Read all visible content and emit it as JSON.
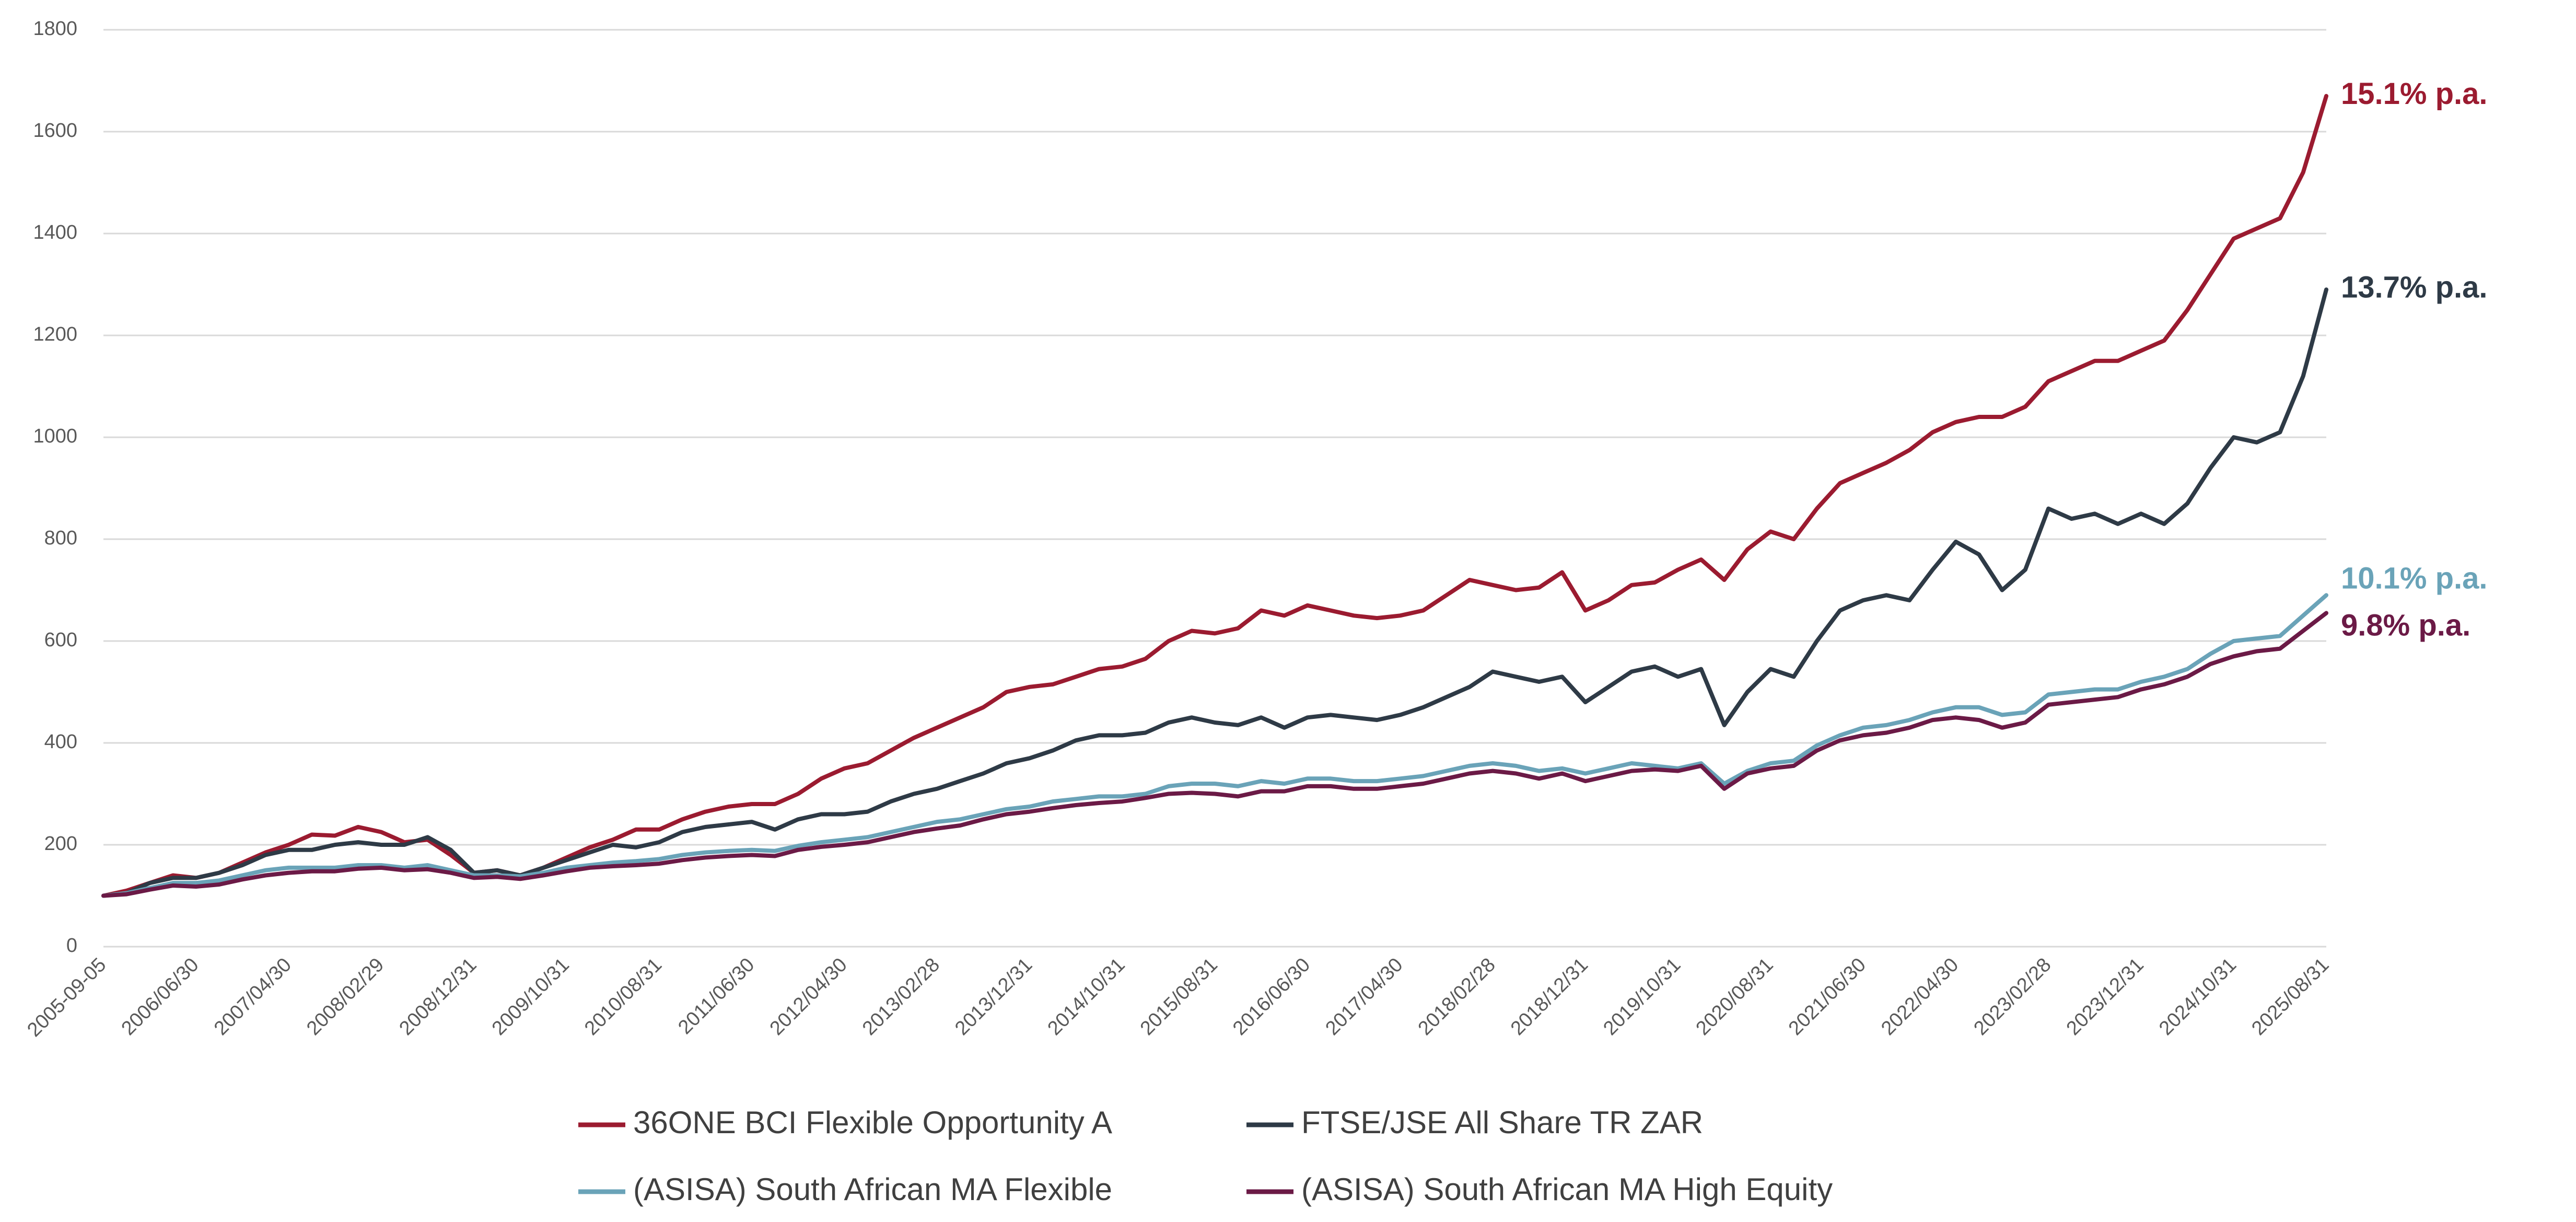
{
  "chart_data": {
    "type": "line",
    "categories": [
      "2005-09-05",
      null,
      null,
      null,
      "2006/06/30",
      null,
      null,
      null,
      "2007/04/30",
      null,
      null,
      null,
      "2008/02/29",
      null,
      null,
      null,
      "2008/12/31",
      null,
      null,
      null,
      "2009/10/31",
      null,
      null,
      null,
      "2010/08/31",
      null,
      null,
      null,
      "2011/06/30",
      null,
      null,
      null,
      "2012/04/30",
      null,
      null,
      null,
      "2013/02/28",
      null,
      null,
      null,
      "2013/12/31",
      null,
      null,
      null,
      "2014/10/31",
      null,
      null,
      null,
      "2015/08/31",
      null,
      null,
      null,
      "2016/06/30",
      null,
      null,
      null,
      "2017/04/30",
      null,
      null,
      null,
      "2018/02/28",
      null,
      null,
      null,
      "2018/12/31",
      null,
      null,
      null,
      "2019/10/31",
      null,
      null,
      null,
      "2020/08/31",
      null,
      null,
      null,
      "2021/06/30",
      null,
      null,
      null,
      "2022/04/30",
      null,
      null,
      null,
      "2023/02/28",
      null,
      null,
      null,
      "2023/12/31",
      null,
      null,
      null,
      "2024/10/31",
      null,
      null,
      null,
      "2025/08/31"
    ],
    "series": [
      {
        "name": "36ONE BCI Flexible Opportunity A",
        "color": "#9b1b30",
        "end_label": "15.1% p.a.",
        "values": [
          100,
          110,
          125,
          140,
          135,
          145,
          165,
          185,
          200,
          220,
          218,
          235,
          225,
          205,
          210,
          180,
          145,
          150,
          140,
          155,
          175,
          195,
          210,
          230,
          230,
          250,
          265,
          275,
          280,
          280,
          300,
          330,
          350,
          360,
          385,
          410,
          430,
          450,
          470,
          500,
          510,
          515,
          530,
          545,
          550,
          565,
          600,
          620,
          615,
          625,
          660,
          650,
          670,
          660,
          650,
          645,
          650,
          660,
          690,
          720,
          710,
          700,
          705,
          735,
          660,
          680,
          710,
          715,
          740,
          760,
          720,
          780,
          815,
          800,
          860,
          910,
          930,
          950,
          975,
          1010,
          1030,
          1040,
          1040,
          1060,
          1110,
          1130,
          1150,
          1150,
          1170,
          1190,
          1250,
          1320,
          1390,
          1410,
          1430,
          1520,
          1670
        ]
      },
      {
        "name": "FTSE/JSE All Share TR ZAR",
        "color": "#2e3a46",
        "end_label": "13.7% p.a.",
        "values": [
          100,
          105,
          125,
          135,
          135,
          145,
          160,
          180,
          190,
          190,
          200,
          205,
          200,
          200,
          215,
          190,
          145,
          150,
          140,
          155,
          170,
          185,
          200,
          195,
          205,
          225,
          235,
          240,
          245,
          230,
          250,
          260,
          260,
          265,
          285,
          300,
          310,
          325,
          340,
          360,
          370,
          385,
          405,
          415,
          415,
          420,
          440,
          450,
          440,
          435,
          450,
          430,
          450,
          455,
          450,
          445,
          455,
          470,
          490,
          510,
          540,
          530,
          520,
          530,
          480,
          510,
          540,
          550,
          530,
          545,
          435,
          500,
          545,
          530,
          600,
          660,
          680,
          690,
          680,
          740,
          795,
          770,
          700,
          740,
          860,
          840,
          850,
          830,
          850,
          830,
          870,
          940,
          1000,
          990,
          1010,
          1120,
          1290
        ]
      },
      {
        "name": "(ASISA) South African MA Flexible",
        "color": "#6aa3b8",
        "end_label": "10.1% p.a.",
        "values": [
          100,
          105,
          115,
          125,
          125,
          130,
          140,
          150,
          155,
          155,
          155,
          160,
          160,
          155,
          160,
          150,
          140,
          140,
          138,
          145,
          155,
          160,
          165,
          168,
          172,
          180,
          185,
          188,
          190,
          188,
          198,
          205,
          210,
          215,
          225,
          235,
          245,
          250,
          260,
          270,
          275,
          285,
          290,
          295,
          295,
          300,
          315,
          320,
          320,
          315,
          325,
          320,
          330,
          330,
          325,
          325,
          330,
          335,
          345,
          355,
          360,
          355,
          345,
          350,
          340,
          350,
          360,
          355,
          350,
          360,
          320,
          345,
          360,
          365,
          395,
          415,
          430,
          435,
          445,
          460,
          470,
          470,
          455,
          460,
          495,
          500,
          505,
          505,
          520,
          530,
          545,
          575,
          600,
          605,
          610,
          650,
          690
        ]
      },
      {
        "name": "(ASISA) South African MA High Equity",
        "color": "#6b1a46",
        "end_label": "9.8% p.a.",
        "values": [
          100,
          103,
          112,
          120,
          118,
          122,
          132,
          140,
          145,
          148,
          148,
          153,
          155,
          150,
          152,
          145,
          135,
          137,
          133,
          140,
          148,
          155,
          158,
          160,
          163,
          170,
          175,
          178,
          180,
          178,
          190,
          196,
          200,
          205,
          215,
          225,
          232,
          238,
          250,
          260,
          265,
          272,
          278,
          282,
          285,
          292,
          300,
          302,
          300,
          295,
          305,
          305,
          315,
          315,
          310,
          310,
          315,
          320,
          330,
          340,
          345,
          340,
          330,
          340,
          325,
          335,
          345,
          348,
          345,
          355,
          310,
          340,
          350,
          355,
          385,
          405,
          415,
          420,
          430,
          445,
          450,
          445,
          430,
          440,
          475,
          480,
          485,
          490,
          505,
          515,
          530,
          555,
          570,
          580,
          585,
          620,
          655
        ]
      }
    ],
    "ylim": [
      0,
      1800
    ],
    "yticks": [
      0,
      200,
      400,
      600,
      800,
      1000,
      1200,
      1400,
      1600,
      1800
    ],
    "grid": true,
    "legend": "bottom"
  }
}
